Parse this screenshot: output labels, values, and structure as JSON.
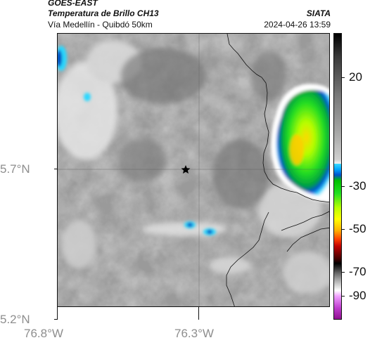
{
  "header": {
    "satellite": "GOES-EAST",
    "product": "Temperatura de Brillo CH13",
    "route": "Vía Medellín - Quibdó 50km",
    "agency": "SIATA",
    "timestamp": "2024-04-26 13:59"
  },
  "map": {
    "lat_ticks": [
      "5.7°N",
      "5.2°N"
    ],
    "lon_ticks": [
      "76.8°W",
      "76.3°W"
    ],
    "marker": "star-marker"
  },
  "colorbar": {
    "labels": [
      "20",
      "-30",
      "-50",
      "-70",
      "-90"
    ]
  },
  "colors": {
    "frame": "#111111",
    "axis_text": "#8e8e8e"
  }
}
